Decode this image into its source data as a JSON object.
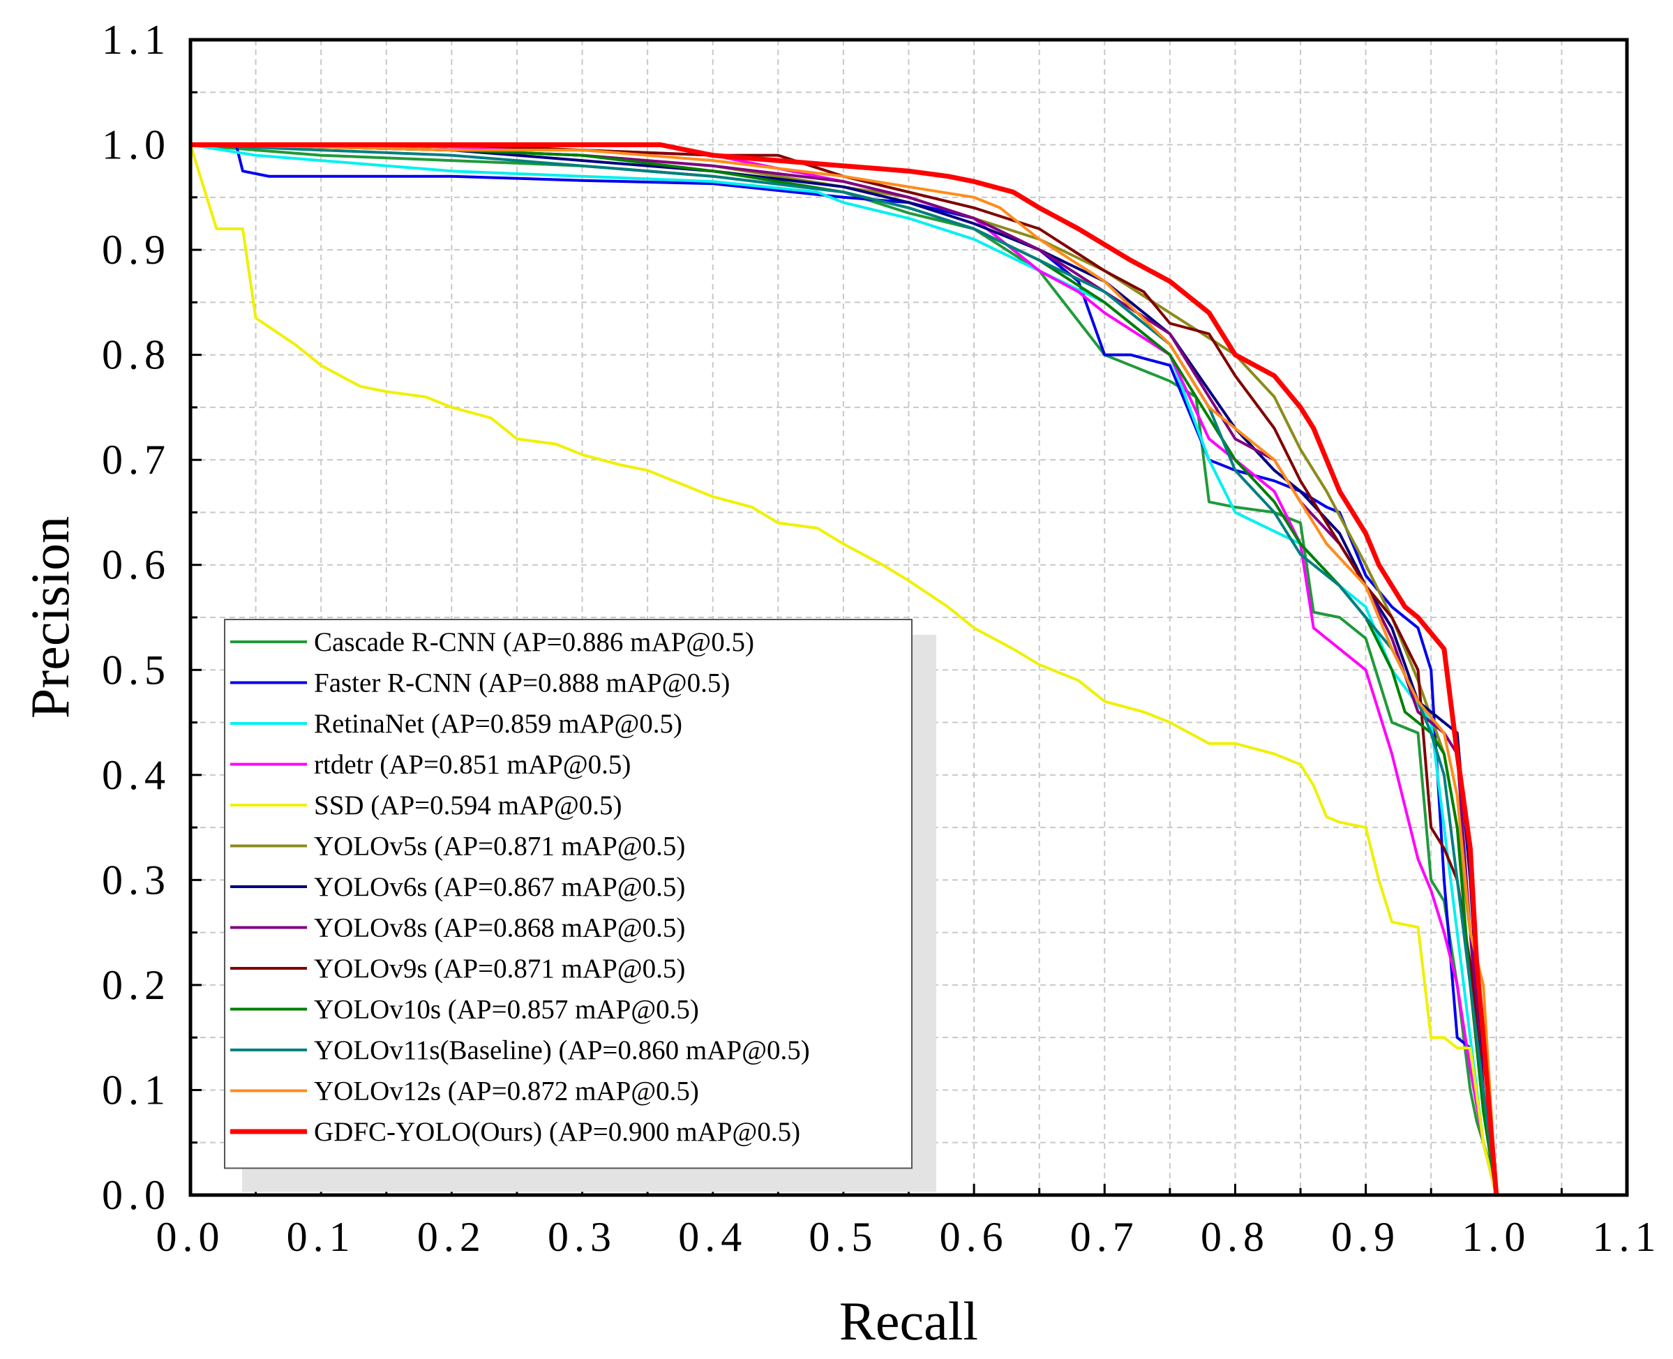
{
  "chart_data": {
    "type": "line",
    "title": "",
    "xlabel": "Recall",
    "ylabel": "Precision",
    "xlim": [
      0.0,
      1.1
    ],
    "ylim": [
      0.0,
      1.1
    ],
    "xticks": [
      "0.0",
      "0.1",
      "0.2",
      "0.3",
      "0.4",
      "0.5",
      "0.6",
      "0.7",
      "0.8",
      "0.9",
      "1.0",
      "1.1"
    ],
    "yticks": [
      "0.0",
      "0.1",
      "0.2",
      "0.3",
      "0.4",
      "0.5",
      "0.6",
      "0.7",
      "0.8",
      "0.9",
      "1.0",
      "1.1"
    ],
    "grid": true,
    "legend_position": "lower-left",
    "series": [
      {
        "name": "Cascade R-CNN (AP=0.886 mAP@0.5)",
        "color": "#1f9a3a",
        "x": [
          0,
          0.05,
          0.1,
          0.2,
          0.3,
          0.4,
          0.5,
          0.55,
          0.6,
          0.65,
          0.7,
          0.72,
          0.75,
          0.77,
          0.78,
          0.8,
          0.83,
          0.85,
          0.86,
          0.88,
          0.9,
          0.92,
          0.94,
          0.95,
          0.96,
          0.97,
          0.975,
          0.98,
          0.985,
          0.99,
          0.995,
          1.0
        ],
        "y": [
          1.0,
          0.995,
          0.99,
          0.985,
          0.98,
          0.97,
          0.955,
          0.935,
          0.92,
          0.88,
          0.8,
          0.79,
          0.775,
          0.76,
          0.66,
          0.655,
          0.65,
          0.64,
          0.555,
          0.55,
          0.53,
          0.45,
          0.44,
          0.3,
          0.28,
          0.2,
          0.15,
          0.1,
          0.07,
          0.05,
          0.03,
          0.0
        ]
      },
      {
        "name": "Faster R-CNN (AP=0.888 mAP@0.5)",
        "color": "#0000ee",
        "x": [
          0,
          0.035,
          0.04,
          0.06,
          0.1,
          0.2,
          0.3,
          0.4,
          0.5,
          0.55,
          0.6,
          0.65,
          0.68,
          0.7,
          0.72,
          0.75,
          0.78,
          0.8,
          0.83,
          0.85,
          0.87,
          0.88,
          0.9,
          0.92,
          0.94,
          0.95,
          0.96,
          0.97,
          0.98,
          0.99,
          1.0
        ],
        "y": [
          1.0,
          1.0,
          0.975,
          0.97,
          0.97,
          0.97,
          0.966,
          0.963,
          0.95,
          0.945,
          0.93,
          0.9,
          0.87,
          0.8,
          0.8,
          0.79,
          0.7,
          0.69,
          0.68,
          0.67,
          0.655,
          0.65,
          0.59,
          0.56,
          0.54,
          0.5,
          0.3,
          0.15,
          0.14,
          0.05,
          0.0
        ]
      },
      {
        "name": "RetinaNet (AP=0.859 mAP@0.5)",
        "color": "#00f0f0",
        "x": [
          0,
          0.05,
          0.1,
          0.2,
          0.3,
          0.4,
          0.48,
          0.5,
          0.55,
          0.6,
          0.65,
          0.7,
          0.75,
          0.78,
          0.8,
          0.85,
          0.88,
          0.9,
          0.92,
          0.95,
          0.96,
          0.97,
          0.98,
          0.99,
          1.0
        ],
        "y": [
          1.0,
          0.99,
          0.985,
          0.975,
          0.97,
          0.965,
          0.955,
          0.945,
          0.93,
          0.91,
          0.88,
          0.85,
          0.8,
          0.7,
          0.65,
          0.62,
          0.58,
          0.56,
          0.5,
          0.45,
          0.35,
          0.25,
          0.15,
          0.05,
          0.0
        ]
      },
      {
        "name": "rtdetr (AP=0.851 mAP@0.5)",
        "color": "#ff00ff",
        "x": [
          0,
          0.1,
          0.2,
          0.3,
          0.4,
          0.5,
          0.55,
          0.6,
          0.65,
          0.68,
          0.7,
          0.75,
          0.78,
          0.8,
          0.83,
          0.85,
          0.86,
          0.88,
          0.9,
          0.91,
          0.92,
          0.93,
          0.94,
          0.95,
          0.96,
          0.97,
          0.98,
          0.99,
          1.0
        ],
        "y": [
          1.0,
          1.0,
          0.998,
          0.995,
          0.99,
          0.965,
          0.95,
          0.93,
          0.88,
          0.86,
          0.84,
          0.8,
          0.72,
          0.7,
          0.67,
          0.62,
          0.54,
          0.52,
          0.5,
          0.46,
          0.42,
          0.37,
          0.32,
          0.29,
          0.25,
          0.2,
          0.12,
          0.05,
          0.0
        ]
      },
      {
        "name": "SSD (AP=0.594 mAP@0.5)",
        "color": "#f0f000",
        "x": [
          0,
          0.02,
          0.04,
          0.05,
          0.08,
          0.1,
          0.13,
          0.15,
          0.18,
          0.2,
          0.23,
          0.25,
          0.28,
          0.3,
          0.33,
          0.35,
          0.38,
          0.4,
          0.43,
          0.45,
          0.48,
          0.5,
          0.53,
          0.55,
          0.58,
          0.6,
          0.63,
          0.65,
          0.68,
          0.7,
          0.73,
          0.75,
          0.78,
          0.8,
          0.83,
          0.85,
          0.86,
          0.87,
          0.88,
          0.9,
          0.91,
          0.92,
          0.94,
          0.95,
          0.96,
          0.97,
          0.98,
          0.99,
          1.0
        ],
        "y": [
          1.0,
          0.92,
          0.92,
          0.835,
          0.81,
          0.79,
          0.77,
          0.765,
          0.76,
          0.75,
          0.74,
          0.72,
          0.715,
          0.705,
          0.695,
          0.69,
          0.675,
          0.665,
          0.655,
          0.64,
          0.635,
          0.62,
          0.6,
          0.585,
          0.56,
          0.54,
          0.52,
          0.505,
          0.49,
          0.47,
          0.46,
          0.45,
          0.43,
          0.43,
          0.42,
          0.41,
          0.39,
          0.36,
          0.355,
          0.35,
          0.3,
          0.26,
          0.255,
          0.15,
          0.15,
          0.14,
          0.14,
          0.05,
          0.0
        ]
      },
      {
        "name": "YOLOv5s (AP=0.871 mAP@0.5)",
        "color": "#8b8b1a",
        "x": [
          0,
          0.1,
          0.2,
          0.3,
          0.4,
          0.5,
          0.55,
          0.6,
          0.65,
          0.7,
          0.75,
          0.8,
          0.83,
          0.85,
          0.87,
          0.9,
          0.92,
          0.94,
          0.96,
          0.97,
          0.98,
          0.99,
          1.0
        ],
        "y": [
          1.0,
          0.998,
          0.995,
          0.99,
          0.98,
          0.96,
          0.95,
          0.93,
          0.91,
          0.88,
          0.84,
          0.8,
          0.76,
          0.71,
          0.67,
          0.6,
          0.55,
          0.49,
          0.42,
          0.35,
          0.25,
          0.1,
          0.0
        ]
      },
      {
        "name": "YOLOv6s (AP=0.867 mAP@0.5)",
        "color": "#00007f",
        "x": [
          0,
          0.1,
          0.2,
          0.3,
          0.4,
          0.5,
          0.55,
          0.6,
          0.65,
          0.7,
          0.75,
          0.8,
          0.83,
          0.85,
          0.88,
          0.9,
          0.92,
          0.94,
          0.96,
          0.97,
          0.98,
          0.99,
          1.0
        ],
        "y": [
          1.0,
          0.998,
          0.995,
          0.985,
          0.975,
          0.96,
          0.945,
          0.925,
          0.9,
          0.87,
          0.82,
          0.73,
          0.69,
          0.67,
          0.63,
          0.58,
          0.54,
          0.47,
          0.45,
          0.44,
          0.3,
          0.1,
          0.0
        ]
      },
      {
        "name": "YOLOv8s (AP=0.868 mAP@0.5)",
        "color": "#800080",
        "x": [
          0,
          0.1,
          0.2,
          0.3,
          0.4,
          0.5,
          0.55,
          0.6,
          0.65,
          0.7,
          0.75,
          0.78,
          0.8,
          0.83,
          0.85,
          0.88,
          0.9,
          0.92,
          0.94,
          0.96,
          0.97,
          0.98,
          0.99,
          1.0
        ],
        "y": [
          1.0,
          0.998,
          0.995,
          0.99,
          0.98,
          0.965,
          0.95,
          0.93,
          0.9,
          0.86,
          0.82,
          0.76,
          0.72,
          0.7,
          0.66,
          0.62,
          0.58,
          0.53,
          0.46,
          0.44,
          0.42,
          0.25,
          0.1,
          0.0
        ]
      },
      {
        "name": "YOLOv9s (AP=0.871 mAP@0.5)",
        "color": "#800000",
        "x": [
          0,
          0.1,
          0.2,
          0.3,
          0.4,
          0.45,
          0.5,
          0.55,
          0.6,
          0.65,
          0.7,
          0.73,
          0.75,
          0.78,
          0.8,
          0.83,
          0.85,
          0.88,
          0.9,
          0.92,
          0.94,
          0.95,
          0.96,
          0.97,
          0.98,
          0.99,
          1.0
        ],
        "y": [
          1.0,
          1.0,
          1.0,
          0.995,
          0.99,
          0.99,
          0.97,
          0.955,
          0.94,
          0.92,
          0.88,
          0.86,
          0.83,
          0.82,
          0.78,
          0.73,
          0.68,
          0.62,
          0.58,
          0.55,
          0.5,
          0.35,
          0.33,
          0.3,
          0.22,
          0.1,
          0.0
        ]
      },
      {
        "name": "YOLOv10s (AP=0.857 mAP@0.5)",
        "color": "#007f00",
        "x": [
          0,
          0.1,
          0.2,
          0.3,
          0.4,
          0.5,
          0.55,
          0.6,
          0.65,
          0.7,
          0.75,
          0.78,
          0.8,
          0.83,
          0.85,
          0.88,
          0.9,
          0.92,
          0.93,
          0.94,
          0.95,
          0.96,
          0.97,
          0.98,
          0.99,
          1.0
        ],
        "y": [
          1.0,
          0.998,
          0.995,
          0.99,
          0.975,
          0.955,
          0.94,
          0.92,
          0.89,
          0.85,
          0.8,
          0.74,
          0.7,
          0.66,
          0.62,
          0.58,
          0.55,
          0.5,
          0.46,
          0.45,
          0.44,
          0.42,
          0.35,
          0.2,
          0.08,
          0.0
        ]
      },
      {
        "name": "YOLOv11s(Baseline) (AP=0.860 mAP@0.5)",
        "color": "#007f7f",
        "x": [
          0,
          0.1,
          0.2,
          0.3,
          0.4,
          0.5,
          0.55,
          0.6,
          0.65,
          0.7,
          0.75,
          0.78,
          0.8,
          0.83,
          0.85,
          0.88,
          0.9,
          0.92,
          0.94,
          0.95,
          0.96,
          0.97,
          0.98,
          0.99,
          1.0
        ],
        "y": [
          1.0,
          0.995,
          0.99,
          0.98,
          0.97,
          0.955,
          0.94,
          0.92,
          0.89,
          0.86,
          0.81,
          0.75,
          0.69,
          0.65,
          0.61,
          0.58,
          0.55,
          0.52,
          0.47,
          0.44,
          0.4,
          0.3,
          0.2,
          0.1,
          0.0
        ]
      },
      {
        "name": "YOLOv12s (AP=0.872 mAP@0.5)",
        "color": "#ff8c1a",
        "x": [
          0,
          0.1,
          0.2,
          0.3,
          0.4,
          0.5,
          0.55,
          0.6,
          0.62,
          0.65,
          0.7,
          0.75,
          0.78,
          0.8,
          0.83,
          0.85,
          0.87,
          0.9,
          0.92,
          0.94,
          0.96,
          0.97,
          0.98,
          0.99,
          1.0
        ],
        "y": [
          1.0,
          0.998,
          0.995,
          0.995,
          0.985,
          0.97,
          0.96,
          0.95,
          0.94,
          0.91,
          0.87,
          0.81,
          0.75,
          0.73,
          0.7,
          0.66,
          0.62,
          0.58,
          0.52,
          0.47,
          0.44,
          0.38,
          0.25,
          0.2,
          0.0
        ]
      },
      {
        "name": "GDFC-YOLO(Ours) (AP=0.900 mAP@0.5)",
        "color": "#ff0000",
        "x": [
          0,
          0.1,
          0.2,
          0.3,
          0.36,
          0.4,
          0.45,
          0.5,
          0.55,
          0.58,
          0.6,
          0.63,
          0.65,
          0.68,
          0.7,
          0.72,
          0.75,
          0.78,
          0.8,
          0.83,
          0.85,
          0.86,
          0.87,
          0.88,
          0.9,
          0.91,
          0.92,
          0.93,
          0.94,
          0.96,
          0.97,
          0.98,
          0.985,
          0.99,
          1.0
        ],
        "y": [
          1.0,
          1.0,
          1.0,
          1.0,
          1.0,
          0.99,
          0.985,
          0.98,
          0.975,
          0.97,
          0.965,
          0.955,
          0.94,
          0.92,
          0.905,
          0.89,
          0.87,
          0.84,
          0.8,
          0.78,
          0.75,
          0.73,
          0.7,
          0.67,
          0.63,
          0.6,
          0.58,
          0.56,
          0.55,
          0.52,
          0.42,
          0.33,
          0.22,
          0.15,
          0.0
        ]
      }
    ]
  }
}
